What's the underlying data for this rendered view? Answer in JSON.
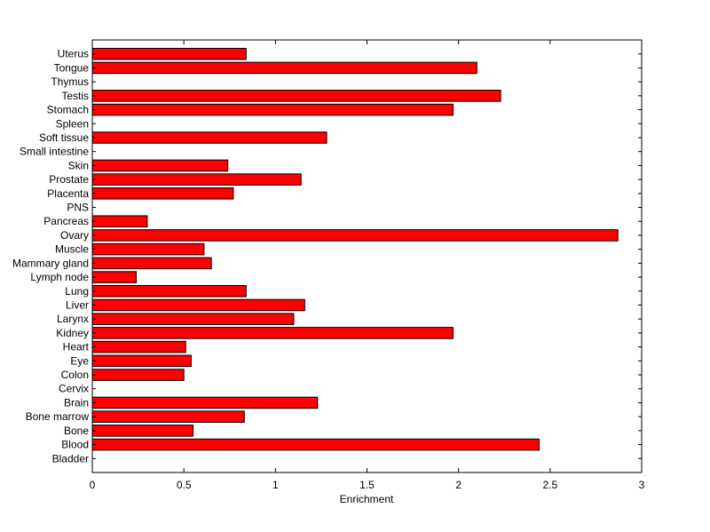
{
  "chart_data": {
    "type": "bar",
    "orientation": "horizontal",
    "xlabel": "Enrichment",
    "ylabel": "",
    "title": "",
    "xlim": [
      0,
      3
    ],
    "xticks": [
      0,
      0.5,
      1,
      1.5,
      2,
      2.5,
      3
    ],
    "xtick_labels": [
      "0",
      "0.5",
      "1",
      "1.5",
      "2",
      "2.5",
      "3"
    ],
    "grid": false,
    "bar_color": "#ff0000",
    "bar_edge_color": "#000000",
    "categories": [
      "Bladder",
      "Blood",
      "Bone",
      "Bone marrow",
      "Brain",
      "Cervix",
      "Colon",
      "Eye",
      "Heart",
      "Kidney",
      "Larynx",
      "Liver",
      "Lung",
      "Lymph node",
      "Mammary gland",
      "Muscle",
      "Ovary",
      "Pancreas",
      "PNS",
      "Placenta",
      "Prostate",
      "Skin",
      "Small intestine",
      "Soft tissue",
      "Spleen",
      "Stomach",
      "Testis",
      "Thymus",
      "Tongue",
      "Uterus"
    ],
    "values": [
      0,
      2.44,
      0.55,
      0.83,
      1.23,
      0,
      0.5,
      0.54,
      0.51,
      1.97,
      1.1,
      1.16,
      0.84,
      0.24,
      0.65,
      0.61,
      2.87,
      0.3,
      0,
      0.77,
      1.14,
      0.74,
      0,
      1.28,
      0,
      1.97,
      2.23,
      0,
      2.1,
      0.84
    ]
  }
}
